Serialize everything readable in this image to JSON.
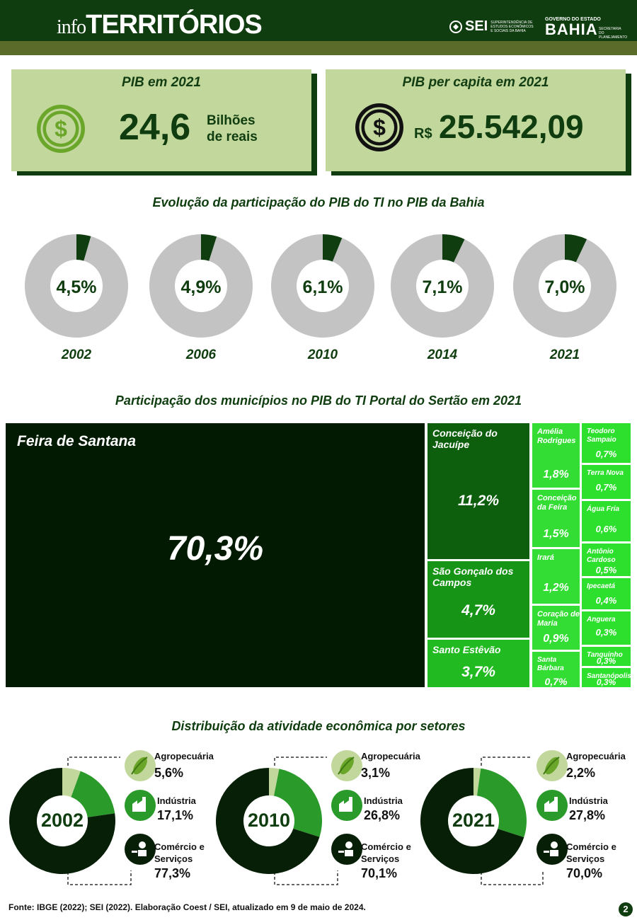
{
  "header": {
    "brand_prefix": "info",
    "brand_main": "TERRITÓRIOS",
    "sei_name": "SEI",
    "sei_desc": "SUPERINTENDÊNCIA DE ESTUDOS ECONÔMICOS E SOCIAIS DA BAHIA",
    "gov_top": "GOVERNO DO ESTADO",
    "gov_state": "BAHIA",
    "gov_sec": "SECRETARIA DO PLANEJAMENTO"
  },
  "kpis": {
    "pib": {
      "title": "PIB em 2021",
      "value": "24,6",
      "unit_line1": "Bilhões",
      "unit_line2": "de reais",
      "icon": "dollar-coin-icon"
    },
    "pib_pc": {
      "title": "PIB per capita em 2021",
      "currency": "R$",
      "value": "25.542,09",
      "icon": "dollar-coin-icon"
    }
  },
  "colors": {
    "dark": "#0f3d0f",
    "light_green": "#c2d79b",
    "gray": "#c3c3c3",
    "treemap": [
      "#021a02",
      "#0d5e0d",
      "#169416",
      "#21ba21",
      "#33dd33",
      "#2ee02e"
    ]
  },
  "chart_data": [
    {
      "type": "pie",
      "variant": "donut-series",
      "title": "Evolução da participação do PIB do TI no PIB da Bahia",
      "categories": [
        "2002",
        "2006",
        "2010",
        "2014",
        "2021"
      ],
      "values": [
        4.5,
        4.9,
        6.1,
        7.1,
        7.0
      ],
      "labels": [
        "4,5%",
        "4,9%",
        "6,1%",
        "7,1%",
        "7,0%"
      ]
    },
    {
      "type": "heatmap",
      "variant": "treemap",
      "title": "Participação dos municípios no PIB do TI Portal do Sertão em 2021",
      "items": [
        {
          "name": "Feira de Santana",
          "value": 70.3,
          "label": "70,3%"
        },
        {
          "name": "Conceição do Jacuípe",
          "value": 11.2,
          "label": "11,2%"
        },
        {
          "name": "São Gonçalo dos Campos",
          "value": 4.7,
          "label": "4,7%"
        },
        {
          "name": "Santo Estêvão",
          "value": 3.7,
          "label": "3,7%"
        },
        {
          "name": "Amélia Rodrigues",
          "value": 1.8,
          "label": "1,8%"
        },
        {
          "name": "Conceição da Feira",
          "value": 1.5,
          "label": "1,5%"
        },
        {
          "name": "Irará",
          "value": 1.2,
          "label": "1,2%"
        },
        {
          "name": "Coração de Maria",
          "value": 0.9,
          "label": "0,9%"
        },
        {
          "name": "Santa Bárbara",
          "value": 0.7,
          "label": "0,7%"
        },
        {
          "name": "Teodoro Sampaio",
          "value": 0.7,
          "label": "0,7%"
        },
        {
          "name": "Terra Nova",
          "value": 0.7,
          "label": "0,7%"
        },
        {
          "name": "Água Fria",
          "value": 0.6,
          "label": "0,6%"
        },
        {
          "name": "Antônio Cardoso",
          "value": 0.5,
          "label": "0,5%"
        },
        {
          "name": "Ipecaetá",
          "value": 0.4,
          "label": "0,4%"
        },
        {
          "name": "Anguera",
          "value": 0.3,
          "label": "0,3%"
        },
        {
          "name": "Tanquinho",
          "value": 0.3,
          "label": "0,3%"
        },
        {
          "name": "Santanópolis",
          "value": 0.3,
          "label": "0,3%"
        }
      ]
    },
    {
      "type": "pie",
      "variant": "donut",
      "title": "Distribuição da atividade econômica por setores",
      "years": [
        "2002",
        "2010",
        "2021"
      ],
      "categories": [
        "Agropecuária",
        "Indústria",
        "Comércio e Serviços"
      ],
      "series": [
        {
          "name": "2002",
          "values": [
            5.6,
            17.1,
            77.3
          ],
          "labels": [
            "5,6%",
            "17,1%",
            "77,3%"
          ]
        },
        {
          "name": "2010",
          "values": [
            3.1,
            26.8,
            70.1
          ],
          "labels": [
            "3,1%",
            "26,8%",
            "70,1%"
          ]
        },
        {
          "name": "2021",
          "values": [
            2.2,
            27.8,
            70.0
          ],
          "labels": [
            "2,2%",
            "27,8%",
            "70,0%"
          ]
        }
      ],
      "sector_labels": {
        "agro": "Agropecuária",
        "ind_line1": "Indústria",
        "com_line1": "Comércio e",
        "com_line2": "Serviços"
      },
      "icons": [
        "corn-icon",
        "factory-icon",
        "shopkeeper-icon"
      ]
    }
  ],
  "footer": {
    "source": "Fonte: IBGE (2022); SEI (2022). Elaboração Coest / SEI, atualizado em 9 de maio de 2024.",
    "page": "2"
  }
}
